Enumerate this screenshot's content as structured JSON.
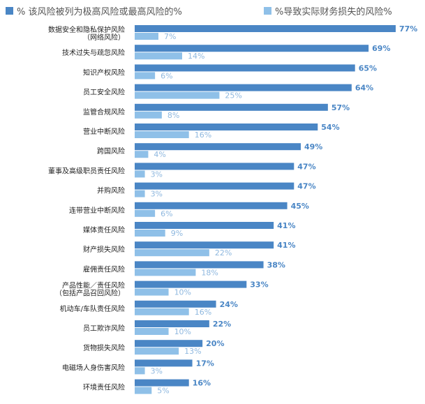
{
  "legend": {
    "series1": "% 该风险被列为极高风险或最高风险的%",
    "series2": "%导致实际财务损失的风险%"
  },
  "colors": {
    "series1": "#4a86c5",
    "series2": "#8fc0e8"
  },
  "chart_data": {
    "type": "bar",
    "orientation": "horizontal",
    "categories": [
      [
        "数据安全和隐私保护风险",
        "（网络风险）"
      ],
      [
        "技术过失与疏忽风险"
      ],
      [
        "知识产权风险"
      ],
      [
        "员工安全风险"
      ],
      [
        "监管合规风险"
      ],
      [
        "营业中断风险"
      ],
      [
        "跨国风险"
      ],
      [
        "董事及高级职员责任风险"
      ],
      [
        "并购风险"
      ],
      [
        "连带营业中断风险"
      ],
      [
        "媒体责任风险"
      ],
      [
        "财产损失风险"
      ],
      [
        "雇佣责任风险"
      ],
      [
        "产品性能／责任风险",
        "（包括产品召回风险）"
      ],
      [
        "机动车/车队责任风险"
      ],
      [
        "员工欺诈风险"
      ],
      [
        "货物损失风险"
      ],
      [
        "电磁场人身伤害风险"
      ],
      [
        "环境责任风险"
      ]
    ],
    "series": [
      {
        "name": "% 该风险被列为极高风险或最高风险的%",
        "values": [
          77,
          69,
          65,
          64,
          57,
          54,
          49,
          47,
          47,
          45,
          41,
          41,
          38,
          33,
          24,
          22,
          20,
          17,
          16
        ],
        "labels": [
          "77%",
          "69%",
          "65%",
          "64%",
          "57%",
          "54%",
          "49%",
          "47%",
          "47%",
          "45%",
          "41%",
          "41%",
          "38%",
          "33%",
          "24%",
          "22%",
          "20%",
          "17%",
          "16%"
        ]
      },
      {
        "name": "%导致实际财务损失的风险%",
        "values": [
          7,
          14,
          6,
          25,
          8,
          16,
          4,
          3,
          3,
          6,
          9,
          22,
          18,
          10,
          16,
          10,
          13,
          3,
          5
        ],
        "labels": [
          "7%",
          "14%",
          "6%",
          "25%",
          "8%",
          "16%",
          "4%",
          "3%",
          "3%",
          "6%",
          "9%",
          "22%",
          "18%",
          "10%",
          "16%",
          "10%",
          "13%",
          "3%",
          "5%"
        ]
      }
    ],
    "xlim": [
      0,
      77
    ]
  }
}
